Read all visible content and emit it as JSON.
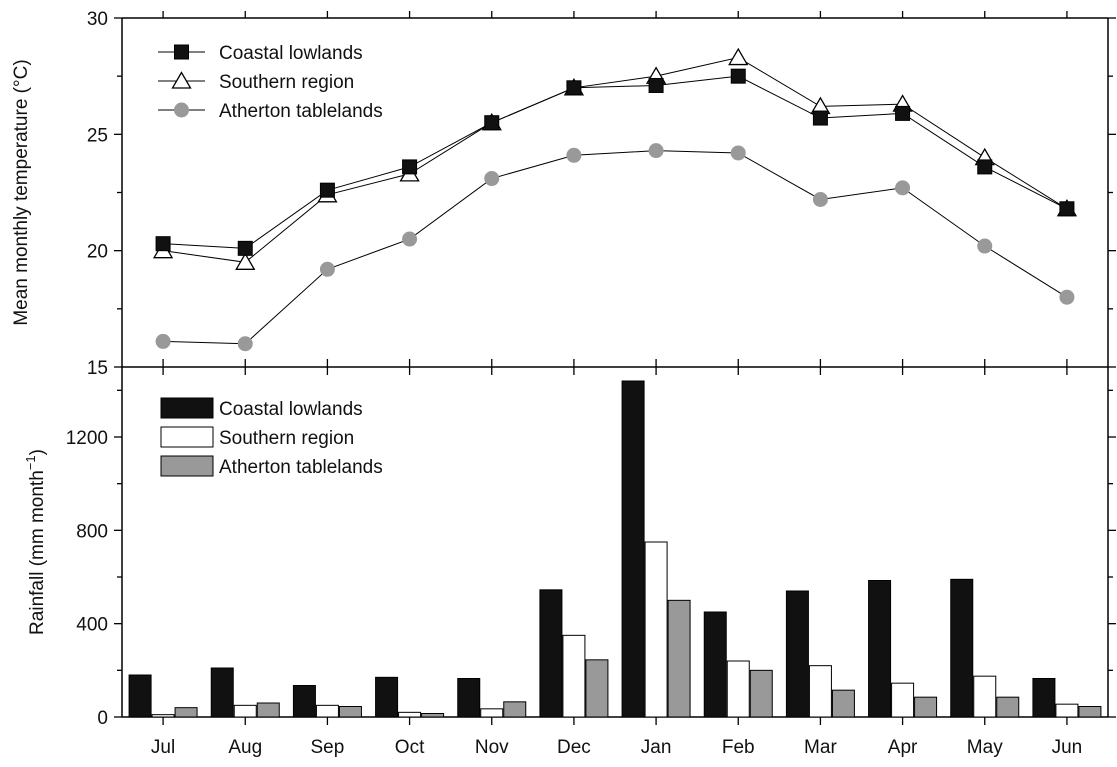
{
  "chart_data": [
    {
      "type": "line",
      "ylabel": "Mean monthly temperature (°C)",
      "ylim": [
        15,
        30
      ],
      "yticks": [
        "15",
        "20",
        "25",
        "30"
      ],
      "categories": [
        "Jul",
        "Aug",
        "Sep",
        "Oct",
        "Nov",
        "Dec",
        "Jan",
        "Feb",
        "Mar",
        "Apr",
        "May",
        "Jun"
      ],
      "legend_position": "top-left",
      "grid": false,
      "series": [
        {
          "name": "Coastal lowlands",
          "marker": "square-filled",
          "color": "#000000",
          "values": [
            20.3,
            20.1,
            22.6,
            23.6,
            25.5,
            27.0,
            27.1,
            27.5,
            25.7,
            25.9,
            23.6,
            21.8
          ]
        },
        {
          "name": "Southern region",
          "marker": "triangle-open",
          "color": "#000000",
          "values": [
            20.0,
            19.5,
            22.4,
            23.3,
            25.5,
            27.0,
            27.5,
            28.3,
            26.2,
            26.3,
            24.0,
            21.8
          ]
        },
        {
          "name": "Atherton tablelands",
          "marker": "circle-gray",
          "color": "#999999",
          "values": [
            16.1,
            16.0,
            19.2,
            20.5,
            23.1,
            24.1,
            24.3,
            24.2,
            22.2,
            22.7,
            20.2,
            18.0
          ]
        }
      ]
    },
    {
      "type": "bar",
      "ylabel": "Rainfall (mm month",
      "ylabel_sup": "−1",
      "ylabel_suffix": ")",
      "ylim": [
        0,
        1500
      ],
      "yticks": [
        "0",
        "400",
        "800",
        "1200"
      ],
      "categories": [
        "Jul",
        "Aug",
        "Sep",
        "Oct",
        "Nov",
        "Dec",
        "Jan",
        "Feb",
        "Mar",
        "Apr",
        "May",
        "Jun"
      ],
      "legend_position": "top-left",
      "grid": false,
      "series": [
        {
          "name": "Coastal lowlands",
          "fill": "#111111",
          "values": [
            180,
            210,
            135,
            170,
            165,
            545,
            1440,
            450,
            540,
            585,
            590,
            165
          ]
        },
        {
          "name": "Southern region",
          "fill": "#ffffff",
          "values": [
            10,
            50,
            50,
            20,
            35,
            350,
            750,
            240,
            220,
            145,
            175,
            55
          ]
        },
        {
          "name": "Atherton tablelands",
          "fill": "#999999",
          "values": [
            40,
            60,
            45,
            15,
            65,
            245,
            500,
            200,
            115,
            85,
            85,
            45
          ]
        }
      ]
    }
  ]
}
